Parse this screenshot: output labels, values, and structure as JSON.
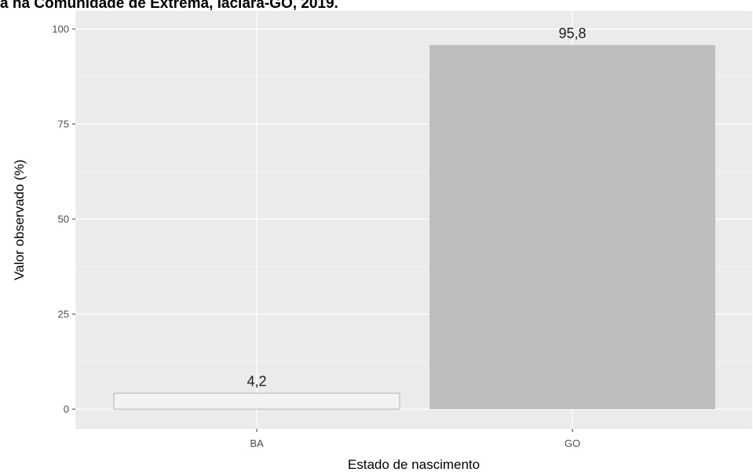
{
  "caption": "a na Comunidade de Extrema, Iaciara-GO, 2019.",
  "chart_data": {
    "type": "bar",
    "title": "",
    "xlabel": "Estado de nascimento",
    "ylabel": "Valor observado (%)",
    "categories": [
      "BA",
      "GO"
    ],
    "values": [
      4.2,
      95.8
    ],
    "value_labels": [
      "4,2",
      "95,8"
    ],
    "bar_colors": [
      "#f2f2f2",
      "#bebebe"
    ],
    "ylim": [
      0,
      100
    ],
    "yticks": [
      0,
      25,
      50,
      75,
      100
    ],
    "grid": true,
    "legend": "none"
  },
  "colors": {
    "panel_background": "#ebebeb",
    "gridline": "#ffffff",
    "bar_outline_ba": "#b5b5b5"
  }
}
